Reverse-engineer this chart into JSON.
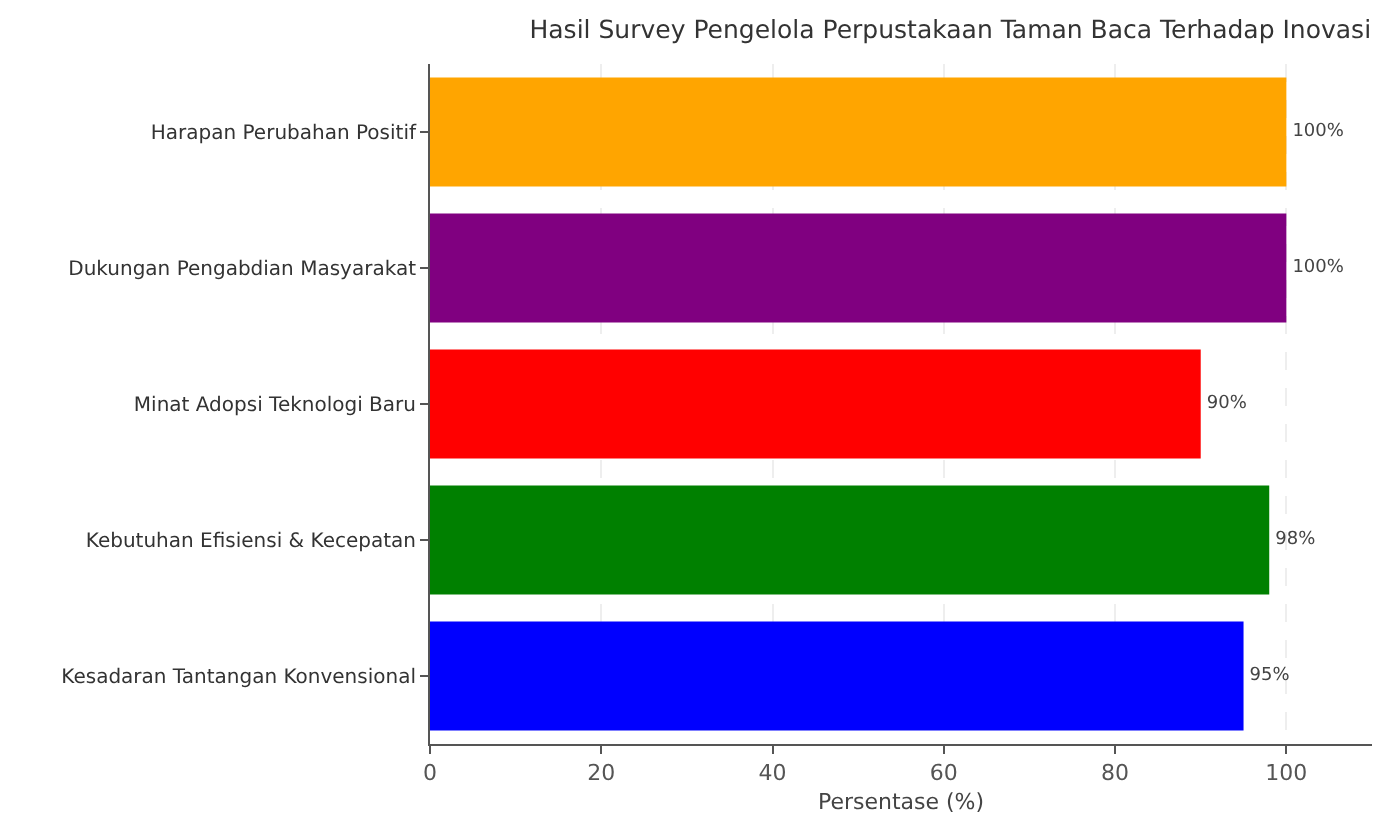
{
  "chart_data": {
    "type": "bar",
    "orientation": "horizontal",
    "title": "Hasil Survey Pengelola Perpustakaan Taman Baca Terhadap Inovasi",
    "xlabel": "Persentase (%)",
    "categories": [
      "Harapan Perubahan Positif",
      "Dukungan Pengabdian Masyarakat",
      "Minat Adopsi Teknologi Baru",
      "Kebutuhan Efisiensi & Kecepatan",
      "Kesadaran Tantangan Konvensional"
    ],
    "values": [
      100,
      100,
      90,
      98,
      95
    ],
    "colors": [
      "#ffa500",
      "#800080",
      "#ff0000",
      "#008000",
      "#0000ff"
    ],
    "value_labels": [
      "100%",
      "100%",
      "90%",
      "98%",
      "95%"
    ],
    "xlim": [
      0,
      110
    ],
    "xticks": [
      0,
      20,
      40,
      60,
      80,
      100
    ],
    "grid": "x"
  }
}
